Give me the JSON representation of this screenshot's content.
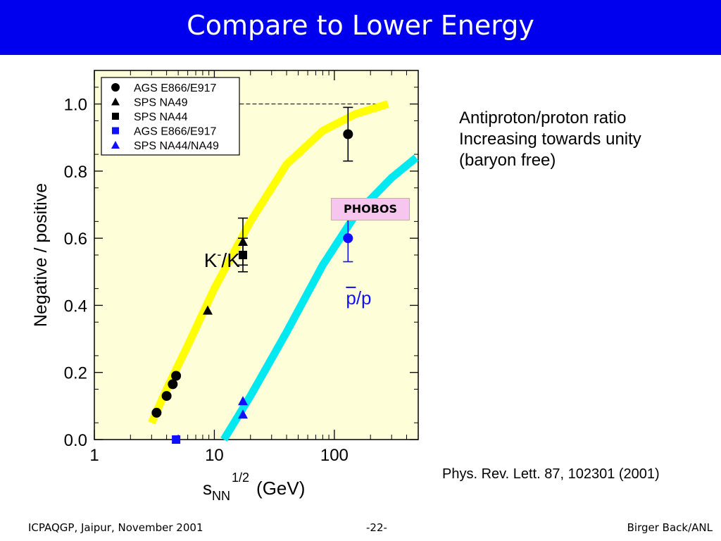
{
  "slide": {
    "title": "Compare to Lower Energy",
    "side_note": [
      "Antiproton/proton ratio",
      "Increasing towards unity",
      "(baryon free)"
    ],
    "reference": "Phys. Rev. Lett. 87, 102301 (2001)",
    "footer_left": "ICPAQGP, Jaipur, November 2001",
    "footer_center": "-22-",
    "footer_right": "Birger Back/ANL",
    "phobos_label": "PHOBOS"
  },
  "chart_data": {
    "type": "scatter",
    "xscale": "log",
    "xlim": [
      1,
      500
    ],
    "ylim": [
      0,
      1.1
    ],
    "xticks": [
      "1",
      "10",
      "100"
    ],
    "yticks": [
      "0.0",
      "0.2",
      "0.4",
      "0.6",
      "0.8",
      "1.0"
    ],
    "xlabel": "s",
    "xlabel_sub": "NN",
    "xlabel_sup": "1/2",
    "xlabel_unit": "(GeV)",
    "ylabel": "Negative / positive",
    "background_color": "#fefed8",
    "kaon_color": "#000000",
    "proton_color": "#1010ff",
    "legend_position": "top-left",
    "legend": [
      {
        "label": "AGS E866/E917",
        "marker": "circle",
        "color": "#000000"
      },
      {
        "label": "SPS NA49",
        "marker": "triangle",
        "color": "#000000"
      },
      {
        "label": "SPS NA44",
        "marker": "square",
        "color": "#000000"
      },
      {
        "label": "AGS E866/E917",
        "marker": "square",
        "color": "#1010ff"
      },
      {
        "label": "SPS NA44/NA49",
        "marker": "triangle",
        "color": "#1010ff"
      }
    ],
    "series": [
      {
        "marker": "circle",
        "color": "#000000",
        "points": [
          {
            "x": 3.3,
            "y": 0.08
          },
          {
            "x": 4.0,
            "y": 0.13
          },
          {
            "x": 4.5,
            "y": 0.165
          },
          {
            "x": 4.8,
            "y": 0.19
          },
          {
            "x": 130,
            "y": 0.91,
            "err": 0.08
          }
        ]
      },
      {
        "marker": "triangle",
        "color": "#000000",
        "points": [
          {
            "x": 8.8,
            "y": 0.385
          },
          {
            "x": 17.3,
            "y": 0.59,
            "err": 0.07
          }
        ]
      },
      {
        "marker": "square",
        "color": "#000000",
        "points": [
          {
            "x": 17.3,
            "y": 0.55,
            "err": 0.05
          }
        ]
      },
      {
        "marker": "square",
        "color": "#1010ff",
        "points": [
          {
            "x": 4.8,
            "y": 0.0
          }
        ]
      },
      {
        "marker": "triangle",
        "color": "#1010ff",
        "points": [
          {
            "x": 17.3,
            "y": 0.115
          },
          {
            "x": 17.3,
            "y": 0.075
          }
        ]
      },
      {
        "marker": "circle",
        "color": "#1010ff",
        "points": [
          {
            "x": 130,
            "y": 0.6,
            "err": 0.07
          }
        ]
      }
    ],
    "curves": [
      {
        "color": "#ffff00",
        "points": [
          [
            3.0,
            0.05
          ],
          [
            4,
            0.15
          ],
          [
            6,
            0.28
          ],
          [
            10,
            0.45
          ],
          [
            20,
            0.65
          ],
          [
            40,
            0.82
          ],
          [
            80,
            0.92
          ],
          [
            150,
            0.97
          ],
          [
            280,
            1.0
          ]
        ]
      },
      {
        "color": "#00e8f0",
        "points": [
          [
            12,
            0.0
          ],
          [
            20,
            0.13
          ],
          [
            40,
            0.32
          ],
          [
            80,
            0.52
          ],
          [
            150,
            0.67
          ],
          [
            300,
            0.78
          ],
          [
            480,
            0.84
          ]
        ]
      }
    ],
    "annotations": [
      {
        "label": "K",
        "sup": "-",
        "label2": "/K",
        "sup2": "+",
        "x": 8.2,
        "y": 0.56
      },
      {
        "label": "p/p",
        "overline_first": true,
        "x": 125,
        "y": 0.42,
        "color": "#1010ff"
      }
    ],
    "reference_line": {
      "y": 1.0,
      "x_from": 10,
      "x_to": 250,
      "style": "dashed"
    }
  }
}
